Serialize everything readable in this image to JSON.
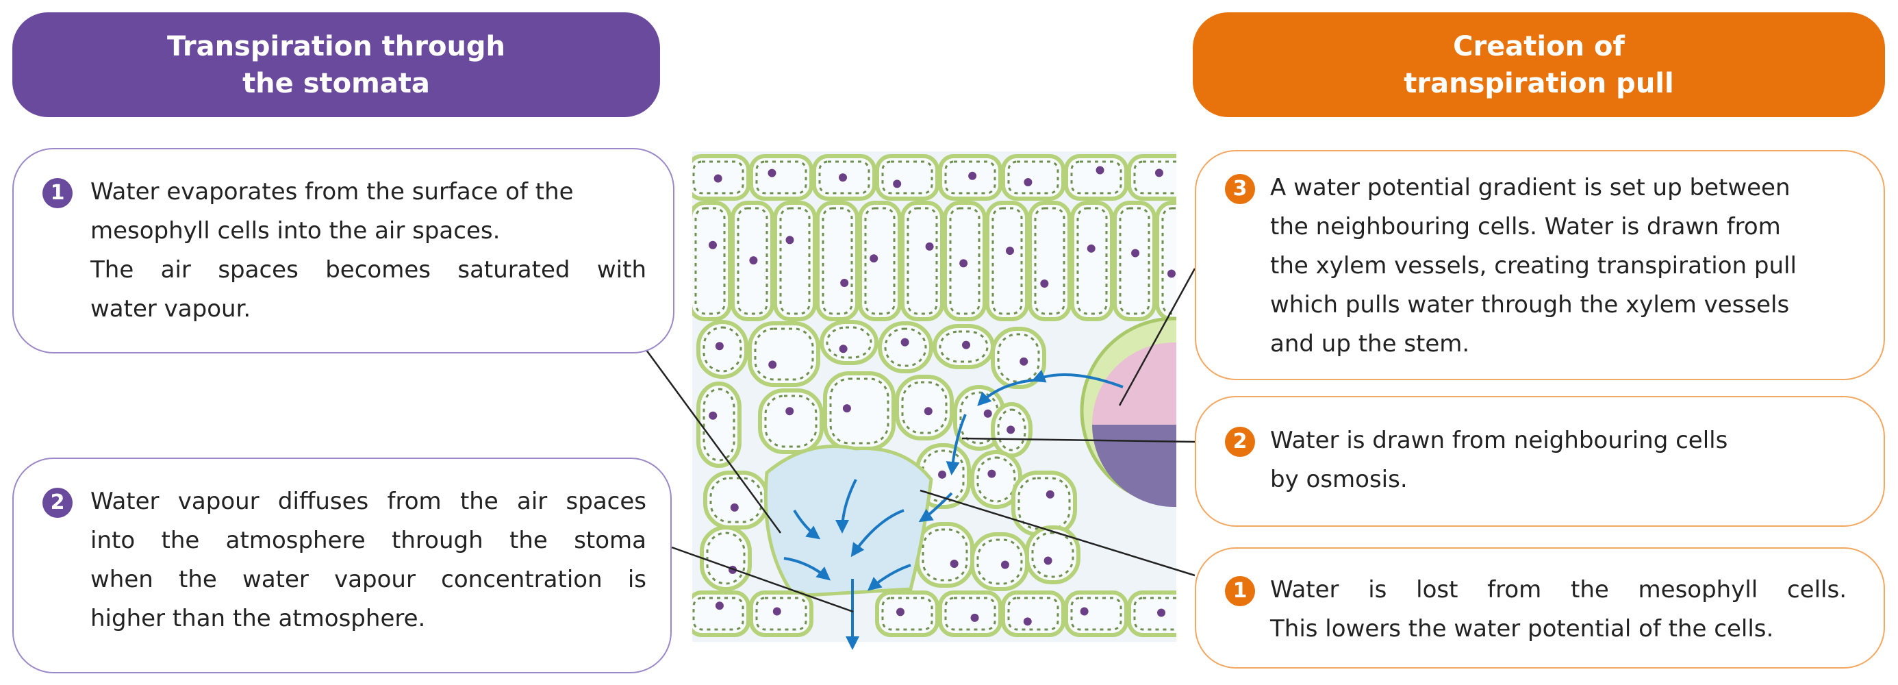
{
  "headers": {
    "left": {
      "lines": [
        "Transpiration through",
        "the stomata"
      ]
    },
    "right": {
      "lines": [
        "Creation of",
        "transpiration pull"
      ]
    }
  },
  "left_boxes": [
    {
      "number": "1",
      "lines": [
        "Water evaporates from the surface of the",
        "mesophyll cells into the air spaces.",
        "The air spaces becomes saturated with",
        "water vapour."
      ]
    },
    {
      "number": "2",
      "lines": [
        "Water vapour diffuses from the air spaces",
        "into the atmosphere through the stoma",
        "when the water vapour concentration is",
        "higher than the atmosphere."
      ]
    }
  ],
  "right_boxes": [
    {
      "number": "3",
      "lines": [
        "A water potential gradient is set up between",
        "the neighbouring cells. Water is drawn from",
        "the xylem vessels, creating transpiration pull",
        "which pulls water through the xylem vessels",
        "and up the stem."
      ]
    },
    {
      "number": "2",
      "lines": [
        "Water is drawn from neighbouring cells",
        "by osmosis."
      ]
    },
    {
      "number": "1",
      "lines": [
        "Water is lost from the mesophyll cells.",
        "This lowers the water potential of the cells."
      ]
    }
  ]
}
